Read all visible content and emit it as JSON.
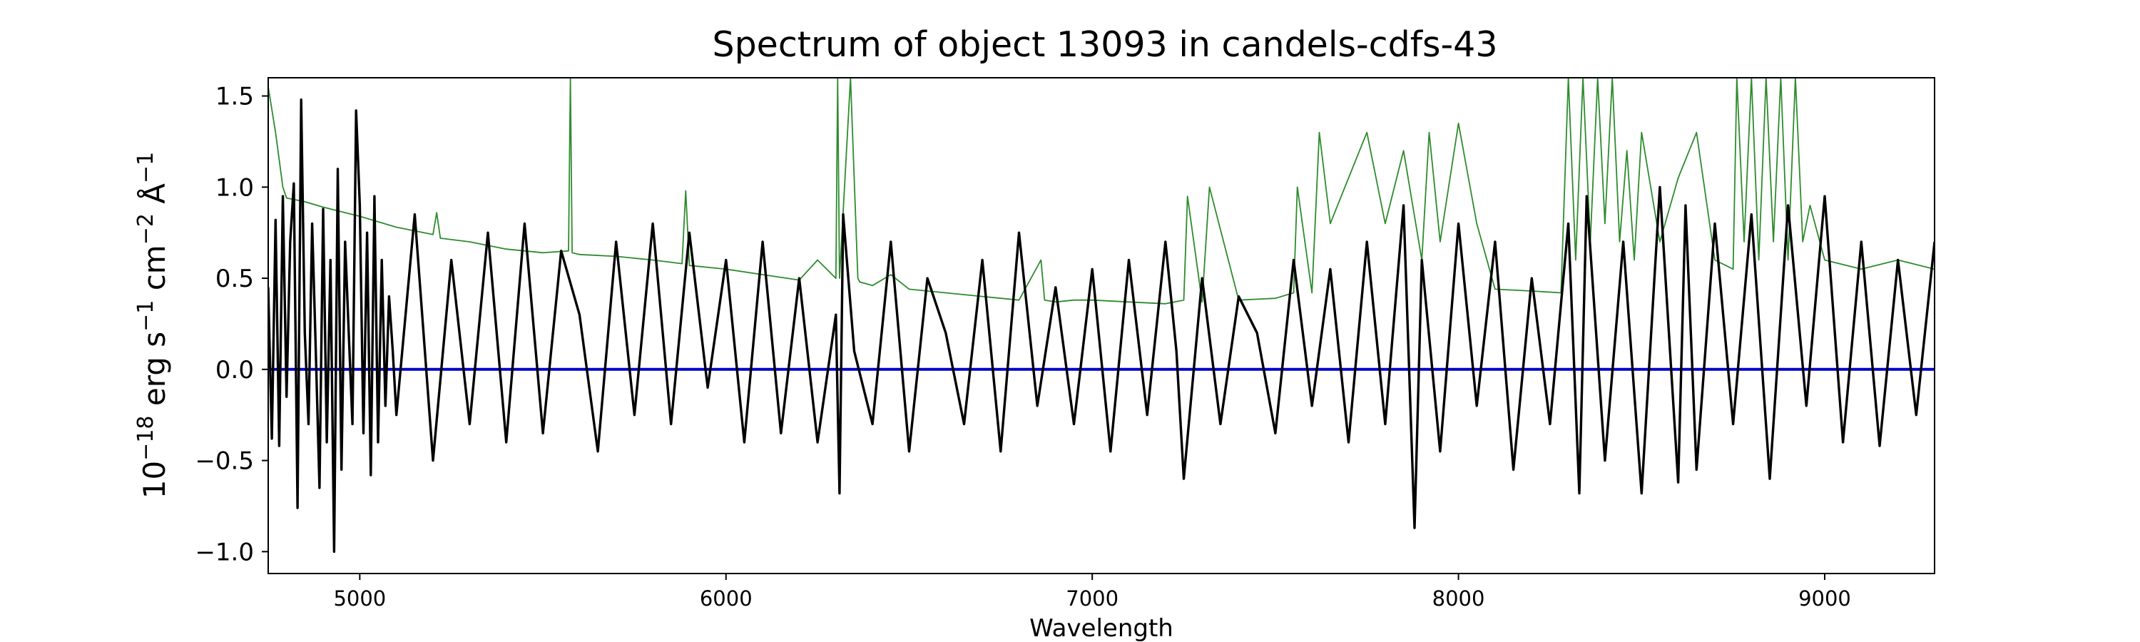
{
  "chart_data": {
    "type": "line",
    "title": "Spectrum of object 13093 in candels-cdfs-43",
    "xlabel": "Wavelength",
    "ylabel": {
      "base": "10",
      "exp": "−18",
      "units": [
        {
          "text": "erg s",
          "sup": "−1"
        },
        {
          "text": "cm",
          "sup": "−2"
        },
        {
          "text": "Å",
          "sup": "−1"
        }
      ]
    },
    "xlim": [
      4750,
      9300
    ],
    "ylim": [
      -1.12,
      1.6
    ],
    "x_ticks": [
      5000,
      6000,
      7000,
      8000,
      9000
    ],
    "x_tick_labels": [
      "5000",
      "6000",
      "7000",
      "8000",
      "9000"
    ],
    "y_ticks": [
      -1.0,
      -0.5,
      0.0,
      0.5,
      1.0,
      1.5
    ],
    "y_tick_labels": [
      "−1.0",
      "−0.5",
      "0.0",
      "0.5",
      "1.0",
      "1.5"
    ],
    "grid": false,
    "legend": "none",
    "series": [
      {
        "role": "zero-line",
        "color": "#0000cc",
        "x": [
          4750,
          9300
        ],
        "y": [
          0.0,
          0.0
        ]
      },
      {
        "role": "error-spectrum",
        "color": "#2e8b2e",
        "x": [
          4750,
          4770,
          4790,
          4800,
          4850,
          4900,
          5000,
          5100,
          5200,
          5210,
          5220,
          5300,
          5400,
          5500,
          5570,
          5575,
          5580,
          5600,
          5700,
          5800,
          5880,
          5890,
          5900,
          6000,
          6100,
          6200,
          6250,
          6300,
          6305,
          6310,
          6340,
          6360,
          6365,
          6400,
          6450,
          6500,
          6600,
          6700,
          6800,
          6860,
          6870,
          6900,
          6950,
          7000,
          7100,
          7200,
          7250,
          7260,
          7300,
          7320,
          7400,
          7500,
          7550,
          7560,
          7600,
          7620,
          7650,
          7700,
          7750,
          7800,
          7850,
          7900,
          7920,
          7950,
          8000,
          8050,
          8100,
          8200,
          8280,
          8300,
          8320,
          8340,
          8360,
          8380,
          8400,
          8420,
          8440,
          8460,
          8480,
          8500,
          8550,
          8600,
          8650,
          8700,
          8750,
          8760,
          8780,
          8800,
          8820,
          8840,
          8860,
          8880,
          8900,
          8920,
          8940,
          8960,
          9000,
          9100,
          9200,
          9300
        ],
        "y": [
          1.55,
          1.3,
          1.0,
          0.94,
          0.92,
          0.89,
          0.84,
          0.78,
          0.74,
          0.86,
          0.72,
          0.7,
          0.66,
          0.64,
          0.65,
          1.6,
          0.64,
          0.63,
          0.62,
          0.6,
          0.58,
          0.98,
          0.57,
          0.55,
          0.52,
          0.49,
          0.6,
          0.5,
          1.6,
          0.5,
          1.6,
          0.5,
          0.48,
          0.46,
          0.52,
          0.44,
          0.42,
          0.4,
          0.38,
          0.6,
          0.38,
          0.37,
          0.38,
          0.38,
          0.37,
          0.36,
          0.38,
          0.95,
          0.37,
          1.0,
          0.38,
          0.39,
          0.42,
          1.0,
          0.42,
          1.3,
          0.8,
          1.05,
          1.3,
          0.8,
          1.2,
          0.6,
          1.3,
          0.7,
          1.35,
          0.8,
          0.44,
          0.43,
          0.42,
          1.6,
          0.6,
          1.6,
          0.7,
          1.6,
          0.8,
          1.6,
          0.7,
          1.2,
          0.6,
          1.3,
          0.7,
          1.05,
          1.3,
          0.6,
          0.55,
          1.6,
          0.7,
          1.6,
          0.6,
          1.6,
          0.7,
          1.6,
          0.6,
          1.6,
          0.7,
          0.9,
          0.6,
          0.55,
          0.6,
          0.55
        ]
      },
      {
        "role": "spectrum",
        "color": "#000000",
        "x": [
          4750,
          4760,
          4770,
          4780,
          4790,
          4800,
          4810,
          4820,
          4830,
          4840,
          4850,
          4860,
          4870,
          4880,
          4890,
          4900,
          4910,
          4920,
          4930,
          4940,
          4950,
          4960,
          4970,
          4980,
          4990,
          5000,
          5010,
          5020,
          5030,
          5040,
          5050,
          5060,
          5070,
          5080,
          5090,
          5100,
          5150,
          5200,
          5250,
          5300,
          5350,
          5400,
          5450,
          5500,
          5550,
          5600,
          5650,
          5700,
          5750,
          5800,
          5850,
          5900,
          5950,
          6000,
          6050,
          6100,
          6150,
          6200,
          6250,
          6300,
          6310,
          6320,
          6350,
          6400,
          6450,
          6500,
          6550,
          6600,
          6650,
          6700,
          6750,
          6800,
          6850,
          6900,
          6950,
          7000,
          7050,
          7100,
          7150,
          7200,
          7230,
          7250,
          7300,
          7350,
          7400,
          7450,
          7500,
          7550,
          7600,
          7650,
          7700,
          7750,
          7800,
          7850,
          7880,
          7900,
          7950,
          8000,
          8050,
          8100,
          8150,
          8200,
          8250,
          8300,
          8330,
          8350,
          8400,
          8450,
          8500,
          8550,
          8600,
          8620,
          8650,
          8700,
          8750,
          8800,
          8850,
          8900,
          8950,
          9000,
          9050,
          9100,
          9150,
          9200,
          9250,
          9300
        ],
        "y": [
          0.45,
          -0.38,
          0.82,
          -0.42,
          0.95,
          -0.15,
          0.7,
          1.02,
          -0.76,
          1.48,
          0.2,
          -0.3,
          0.8,
          0.1,
          -0.65,
          0.88,
          -0.4,
          0.6,
          -1.0,
          1.1,
          -0.55,
          0.7,
          0.2,
          -0.3,
          1.42,
          0.9,
          -0.35,
          0.75,
          -0.58,
          0.95,
          -0.4,
          0.6,
          -0.2,
          0.4,
          0.1,
          -0.25,
          0.85,
          -0.5,
          0.6,
          -0.3,
          0.75,
          -0.4,
          0.8,
          -0.35,
          0.65,
          0.3,
          -0.45,
          0.7,
          -0.25,
          0.8,
          -0.3,
          0.75,
          -0.1,
          0.6,
          -0.4,
          0.7,
          -0.35,
          0.5,
          -0.4,
          0.3,
          -0.68,
          0.85,
          0.1,
          -0.3,
          0.7,
          -0.45,
          0.5,
          0.2,
          -0.3,
          0.6,
          -0.45,
          0.75,
          -0.2,
          0.45,
          -0.3,
          0.55,
          -0.45,
          0.6,
          -0.25,
          0.7,
          0.1,
          -0.6,
          0.5,
          -0.3,
          0.4,
          0.2,
          -0.35,
          0.6,
          -0.2,
          0.55,
          -0.4,
          0.7,
          -0.3,
          0.9,
          -0.87,
          0.6,
          -0.45,
          0.8,
          -0.2,
          0.7,
          -0.55,
          0.5,
          -0.3,
          0.8,
          -0.68,
          0.95,
          -0.5,
          0.7,
          -0.68,
          1.0,
          -0.62,
          0.9,
          -0.55,
          0.8,
          -0.3,
          0.85,
          -0.6,
          0.9,
          -0.2,
          0.95,
          -0.4,
          0.7,
          -0.42,
          0.6,
          -0.25,
          0.7
        ]
      }
    ]
  }
}
